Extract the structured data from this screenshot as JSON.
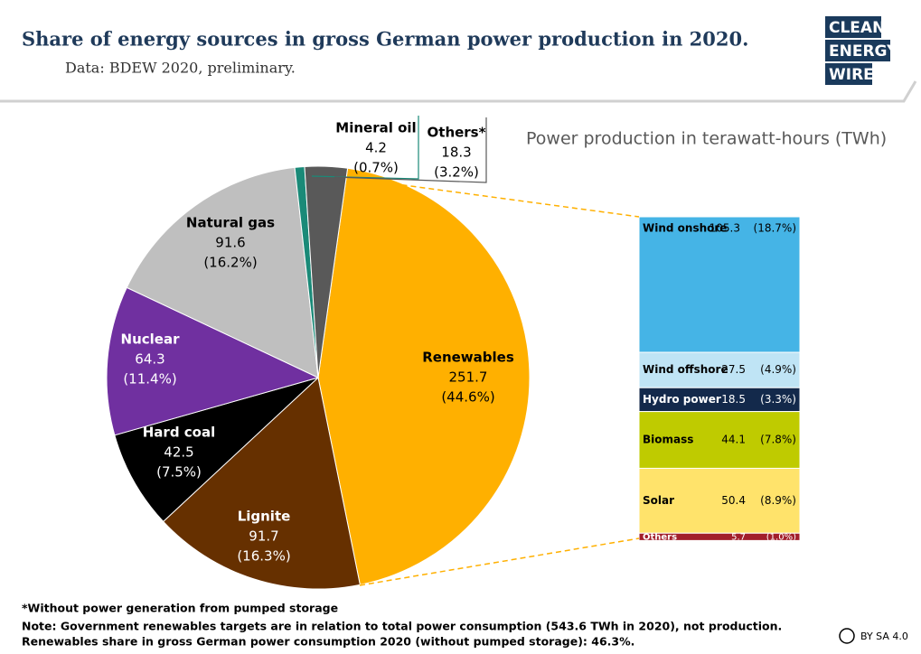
{
  "header": {
    "title": "Share of energy sources in gross German power production in 2020.",
    "subtitle": "Data: BDEW 2020, preliminary.",
    "logo": [
      "CLEAN",
      "ENERGY",
      "WIRE"
    ]
  },
  "chart_data": [
    {
      "type": "pie",
      "title": "Power production in terawatt-hours (TWh)",
      "categories": [
        "Renewables",
        "Lignite",
        "Hard coal",
        "Nuclear",
        "Natural gas",
        "Mineral oil",
        "Others*"
      ],
      "values": [
        251.7,
        91.7,
        42.5,
        64.3,
        91.6,
        4.2,
        18.3
      ],
      "shares": [
        44.6,
        16.3,
        7.5,
        11.4,
        16.2,
        0.7,
        3.2
      ],
      "share_labels": [
        "(44.6%)",
        "(16.3%)",
        "(7.5%)",
        "(11.4%)",
        "(16.2%)",
        "(0.7%)",
        "(3.2%)"
      ],
      "colors": [
        "#ffb000",
        "#663000",
        "#000000",
        "#7030a0",
        "#bfbfbf",
        "#1a8a78",
        "#595959"
      ]
    },
    {
      "type": "stacked-bar",
      "categories": [
        "Wind onshore",
        "Wind offshore",
        "Hydro power",
        "Biomass",
        "Solar",
        "Others"
      ],
      "values": [
        105.3,
        27.5,
        18.5,
        44.1,
        50.4,
        5.7
      ],
      "shares": [
        18.7,
        4.9,
        3.3,
        7.8,
        8.9,
        1.0
      ],
      "share_labels": [
        "(18.7%)",
        "(4.9%)",
        "(3.3%)",
        "(7.8%)",
        "(8.9%)",
        "(1.0%)"
      ],
      "colors": [
        "#45b4e6",
        "#bfe4f5",
        "#13294b",
        "#bfcb00",
        "#ffe36b",
        "#a21f2b"
      ]
    }
  ],
  "notes": {
    "footnote": "*Without power generation from pumped storage",
    "lines": [
      "Note: Government renewables targets are in relation to total power consumption (543.6 TWh in 2020), not production.",
      "Renewables share in gross German power consumption 2020 (without pumped storage): 46.3%."
    ],
    "license": "BY SA 4.0"
  }
}
